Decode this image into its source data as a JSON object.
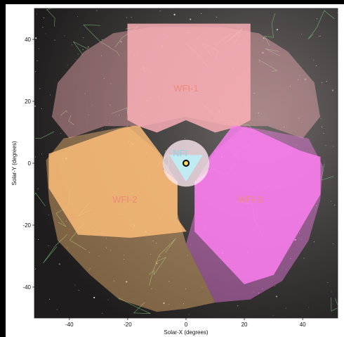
{
  "chart_data": {
    "type": "scatter",
    "title": "",
    "xlabel": "Solar-X (degrees)",
    "ylabel": "Solar-Y (degrees)",
    "xlim": [
      -52,
      52
    ],
    "ylim": [
      -50,
      50
    ],
    "xticks": [
      -40,
      -20,
      0,
      20,
      40
    ],
    "yticks": [
      40,
      20,
      0,
      -20,
      -40
    ],
    "xtick_labels": [
      "-40",
      "-20",
      "0",
      "20",
      "40"
    ],
    "ytick_labels": [
      "40",
      "20",
      "0",
      "-20",
      "-40"
    ],
    "grid": false,
    "background": "star-field image with constellation lines",
    "sun_marker": {
      "x": 0,
      "y": 0
    },
    "fields_of_view": [
      {
        "label": "WFI-1",
        "color": "#ffb2b9",
        "label_at": [
          0,
          24
        ],
        "polygon": [
          [
            -20,
            45
          ],
          [
            22,
            45
          ],
          [
            22,
            14
          ],
          [
            18,
            12
          ],
          [
            10,
            10
          ],
          [
            5,
            12
          ],
          [
            0,
            14
          ],
          [
            -5,
            12
          ],
          [
            -10,
            10
          ],
          [
            -16,
            12
          ],
          [
            -20,
            14
          ]
        ],
        "coverage_polygon": [
          [
            -12,
            44
          ],
          [
            12,
            44
          ],
          [
            25,
            42
          ],
          [
            35,
            36
          ],
          [
            44,
            26
          ],
          [
            46,
            15
          ],
          [
            40,
            8
          ],
          [
            28,
            12
          ],
          [
            15,
            12
          ],
          [
            0,
            15
          ],
          [
            -15,
            12
          ],
          [
            -28,
            12
          ],
          [
            -40,
            8
          ],
          [
            -46,
            15
          ],
          [
            -44,
            26
          ],
          [
            -35,
            36
          ],
          [
            -25,
            42
          ]
        ]
      },
      {
        "label": "WFI-2",
        "color": "#ffc07a",
        "label_at": [
          -21,
          -12
        ],
        "polygon": [
          [
            -18,
            12
          ],
          [
            -23,
            11
          ],
          [
            -47,
            3
          ],
          [
            -47,
            -8
          ],
          [
            -37,
            -23
          ],
          [
            -19,
            -24
          ],
          [
            0,
            -22
          ],
          [
            -3,
            -18
          ],
          [
            -3,
            -14
          ],
          [
            -3,
            -6
          ],
          [
            -8,
            -2
          ],
          [
            -8,
            2
          ],
          [
            -16,
            12
          ]
        ],
        "coverage_polygon": [
          [
            -20,
            12
          ],
          [
            -42,
            8
          ],
          [
            -48,
            1
          ],
          [
            -47,
            -12
          ],
          [
            -44,
            -25
          ],
          [
            -33,
            -36
          ],
          [
            -23,
            -44
          ],
          [
            -10,
            -48
          ],
          [
            0,
            -47
          ],
          [
            10,
            -45
          ],
          [
            0,
            -26
          ],
          [
            -3,
            -16
          ],
          [
            -3,
            -6
          ],
          [
            -10,
            4
          ]
        ]
      },
      {
        "label": "WFI-3",
        "color": "#ff80f2",
        "label_at": [
          22,
          -12
        ],
        "polygon": [
          [
            18,
            12
          ],
          [
            23,
            11
          ],
          [
            39,
            4
          ],
          [
            46,
            2
          ],
          [
            46,
            -10
          ],
          [
            30,
            -36
          ],
          [
            20,
            -39
          ],
          [
            3,
            -22
          ],
          [
            3,
            -18
          ],
          [
            3,
            -14
          ],
          [
            3,
            -6
          ],
          [
            8,
            -2
          ],
          [
            8,
            2
          ],
          [
            16,
            12
          ]
        ],
        "coverage_polygon": [
          [
            20,
            12
          ],
          [
            42,
            8
          ],
          [
            47,
            -1
          ],
          [
            46,
            -12
          ],
          [
            42,
            -25
          ],
          [
            33,
            -38
          ],
          [
            22,
            -44
          ],
          [
            10,
            -45
          ],
          [
            0,
            -26
          ],
          [
            3,
            -16
          ],
          [
            3,
            -6
          ],
          [
            10,
            4
          ]
        ]
      },
      {
        "label": "NFI",
        "color": "#bdeef7",
        "label_at": [
          -2,
          3
        ],
        "center": [
          0,
          0
        ],
        "radius": 8
      }
    ]
  }
}
